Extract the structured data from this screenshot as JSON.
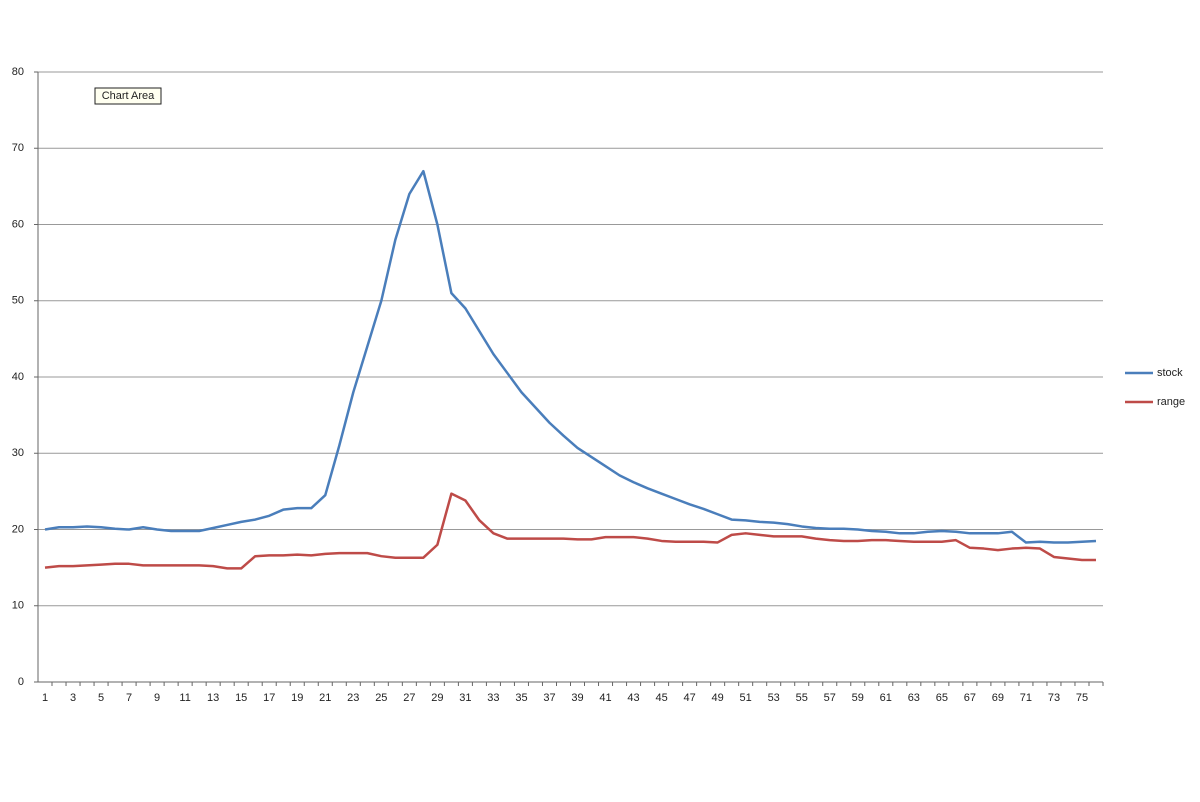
{
  "chart_data": {
    "type": "line",
    "annotation": "Chart Area",
    "categories": [
      "1",
      null,
      "3",
      null,
      "5",
      null,
      "7",
      null,
      "9",
      null,
      "11",
      null,
      "13",
      null,
      "15",
      null,
      "17",
      null,
      "19",
      null,
      "21",
      null,
      "23",
      null,
      "25",
      null,
      "27",
      null,
      "29",
      null,
      "31",
      null,
      "33",
      null,
      "35",
      null,
      "37",
      null,
      "39",
      null,
      "41",
      null,
      "43",
      null,
      "45",
      null,
      "47",
      null,
      "49",
      null,
      "51",
      null,
      "53",
      null,
      "55",
      null,
      "57",
      null,
      "59",
      null,
      "61",
      null,
      "63",
      null,
      "65",
      null,
      "67",
      null,
      "69",
      null,
      "71",
      null,
      "73",
      null,
      "75",
      null
    ],
    "series": [
      {
        "name": "stock",
        "color": "#4a7ebb",
        "values": [
          20,
          20.3,
          20.3,
          20.4,
          20.3,
          20.1,
          20,
          20.3,
          20,
          19.8,
          19.8,
          19.8,
          20.2,
          20.6,
          21,
          21.3,
          21.8,
          22.6,
          22.8,
          22.8,
          24.5,
          31,
          38,
          44,
          50,
          58,
          64,
          67,
          60,
          51,
          49,
          46,
          43,
          40.5,
          38,
          36,
          34,
          32.3,
          30.7,
          29.5,
          28.3,
          27.1,
          26.2,
          25.4,
          24.7,
          24,
          23.3,
          22.7,
          22,
          21.3,
          21.2,
          21,
          20.9,
          20.7,
          20.4,
          20.2,
          20.1,
          20.1,
          20,
          19.8,
          19.7,
          19.5,
          19.5,
          19.7,
          19.8,
          19.7,
          19.5,
          19.5,
          19.5,
          19.7,
          18.3,
          18.4,
          18.3,
          18.3,
          18.4,
          18.5
        ]
      },
      {
        "name": "range",
        "color": "#be4b48",
        "values": [
          15,
          15.2,
          15.2,
          15.3,
          15.4,
          15.5,
          15.5,
          15.3,
          15.3,
          15.3,
          15.3,
          15.3,
          15.2,
          14.9,
          14.9,
          16.5,
          16.6,
          16.6,
          16.7,
          16.6,
          16.8,
          16.9,
          16.9,
          16.9,
          16.5,
          16.3,
          16.3,
          16.3,
          18,
          24.7,
          23.8,
          21.2,
          19.5,
          18.8,
          18.8,
          18.8,
          18.8,
          18.8,
          18.7,
          18.7,
          19,
          19,
          19,
          18.8,
          18.5,
          18.4,
          18.4,
          18.4,
          18.3,
          19.3,
          19.5,
          19.3,
          19.1,
          19.1,
          19.1,
          18.8,
          18.6,
          18.5,
          18.5,
          18.6,
          18.6,
          18.5,
          18.4,
          18.4,
          18.4,
          18.6,
          17.6,
          17.5,
          17.3,
          17.5,
          17.6,
          17.5,
          16.4,
          16.2,
          16,
          16
        ]
      }
    ],
    "ylim": [
      0,
      80
    ],
    "yticks": [
      0,
      10,
      20,
      30,
      40,
      50,
      60,
      70,
      80
    ],
    "grid": true,
    "legend": "right"
  }
}
